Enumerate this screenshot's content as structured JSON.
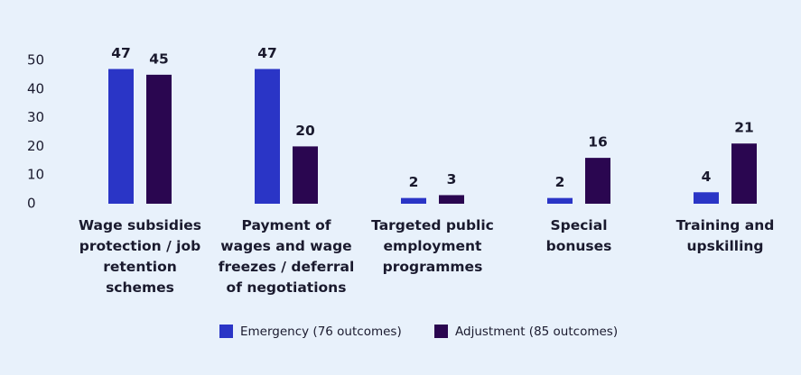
{
  "chart_data": {
    "type": "bar",
    "categories": [
      "Wage subsidies\nprotection / job\nretention\nschemes",
      "Payment of\nwages and wage\nfreezes / deferral\nof negotiations",
      "Targeted public\nemployment\nprogrammes",
      "Special\nbonuses",
      "Training and\nupskilling"
    ],
    "series": [
      {
        "name": "Emergency (76 outcomes)",
        "color": "#2a35c6",
        "values": [
          47,
          47,
          2,
          2,
          4
        ]
      },
      {
        "name": "Adjustment (85 outcomes)",
        "color": "#2a0650",
        "values": [
          45,
          20,
          3,
          16,
          21
        ]
      }
    ],
    "ylim": [
      0,
      50
    ],
    "yticks": [
      0,
      10,
      20,
      30,
      40,
      50
    ],
    "grid": false,
    "legend": "bottom"
  }
}
